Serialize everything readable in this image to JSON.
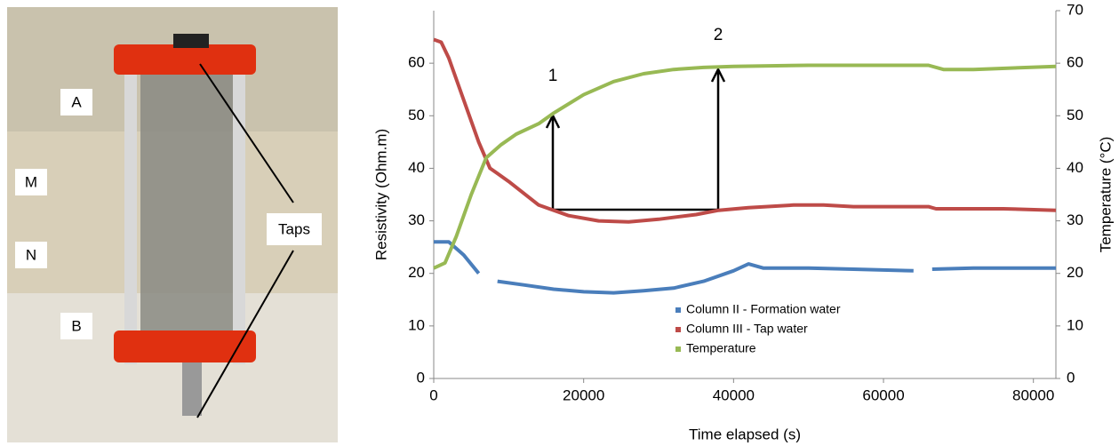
{
  "photo_labels": [
    "A",
    "M",
    "N",
    "B",
    "Taps"
  ],
  "chart_data": {
    "type": "line",
    "xlabel": "Time elapsed (s)",
    "ylabel": "Resistivity (Ohm.m)",
    "y2label": "Temperature (°C)",
    "annotations": [
      "1",
      "2"
    ],
    "xlim": [
      0,
      83000
    ],
    "xticks": [
      0,
      20000,
      40000,
      60000,
      80000
    ],
    "ylim": [
      0,
      70
    ],
    "yticks": [
      0,
      10,
      20,
      30,
      40,
      50,
      60
    ],
    "y2lim": [
      0,
      70
    ],
    "y2ticks": [
      0,
      10,
      20,
      30,
      40,
      50,
      60,
      70
    ],
    "legend": "center",
    "series": [
      {
        "name": "Column II  - Formation water",
        "color": "#4a7ebb",
        "x": [
          0,
          2000,
          4000,
          6000,
          6500,
          8500,
          12000,
          16000,
          20000,
          24000,
          28000,
          32000,
          36000,
          40000,
          42000,
          44000,
          50000,
          56000,
          64000,
          65500,
          66500,
          72000,
          80000,
          83000
        ],
        "values": [
          26,
          26,
          23.5,
          20,
          null,
          18.5,
          17.8,
          17,
          16.5,
          16.3,
          16.7,
          17.2,
          18.5,
          20.5,
          21.8,
          21,
          21,
          20.8,
          20.5,
          null,
          20.8,
          21,
          21,
          21
        ]
      },
      {
        "name": "Column III - Tap water",
        "color": "#be4b48",
        "x": [
          0,
          1000,
          2000,
          4000,
          6000,
          7500,
          8500,
          10000,
          14000,
          18000,
          22000,
          26000,
          30000,
          35000,
          38000,
          42000,
          48000,
          52000,
          56000,
          66000,
          67000,
          76000,
          83000
        ],
        "values": [
          64.5,
          64,
          61,
          53,
          45,
          40,
          39,
          37.5,
          33,
          31,
          30,
          29.8,
          30.3,
          31.2,
          32,
          32.5,
          33,
          33,
          32.7,
          32.7,
          32.3,
          32.3,
          32
        ]
      },
      {
        "name": "Temperature",
        "color": "#98b954",
        "axis": "y2",
        "x": [
          0,
          1500,
          3000,
          5000,
          7000,
          9000,
          11000,
          14000,
          16000,
          20000,
          24000,
          28000,
          32000,
          36000,
          40000,
          50000,
          66000,
          68000,
          72000,
          83000
        ],
        "values": [
          21,
          22,
          27,
          35,
          42,
          44.5,
          46.5,
          48.5,
          50.5,
          54,
          56.5,
          58,
          58.8,
          59.2,
          59.4,
          59.6,
          59.6,
          58.8,
          58.8,
          59.4
        ]
      }
    ]
  }
}
